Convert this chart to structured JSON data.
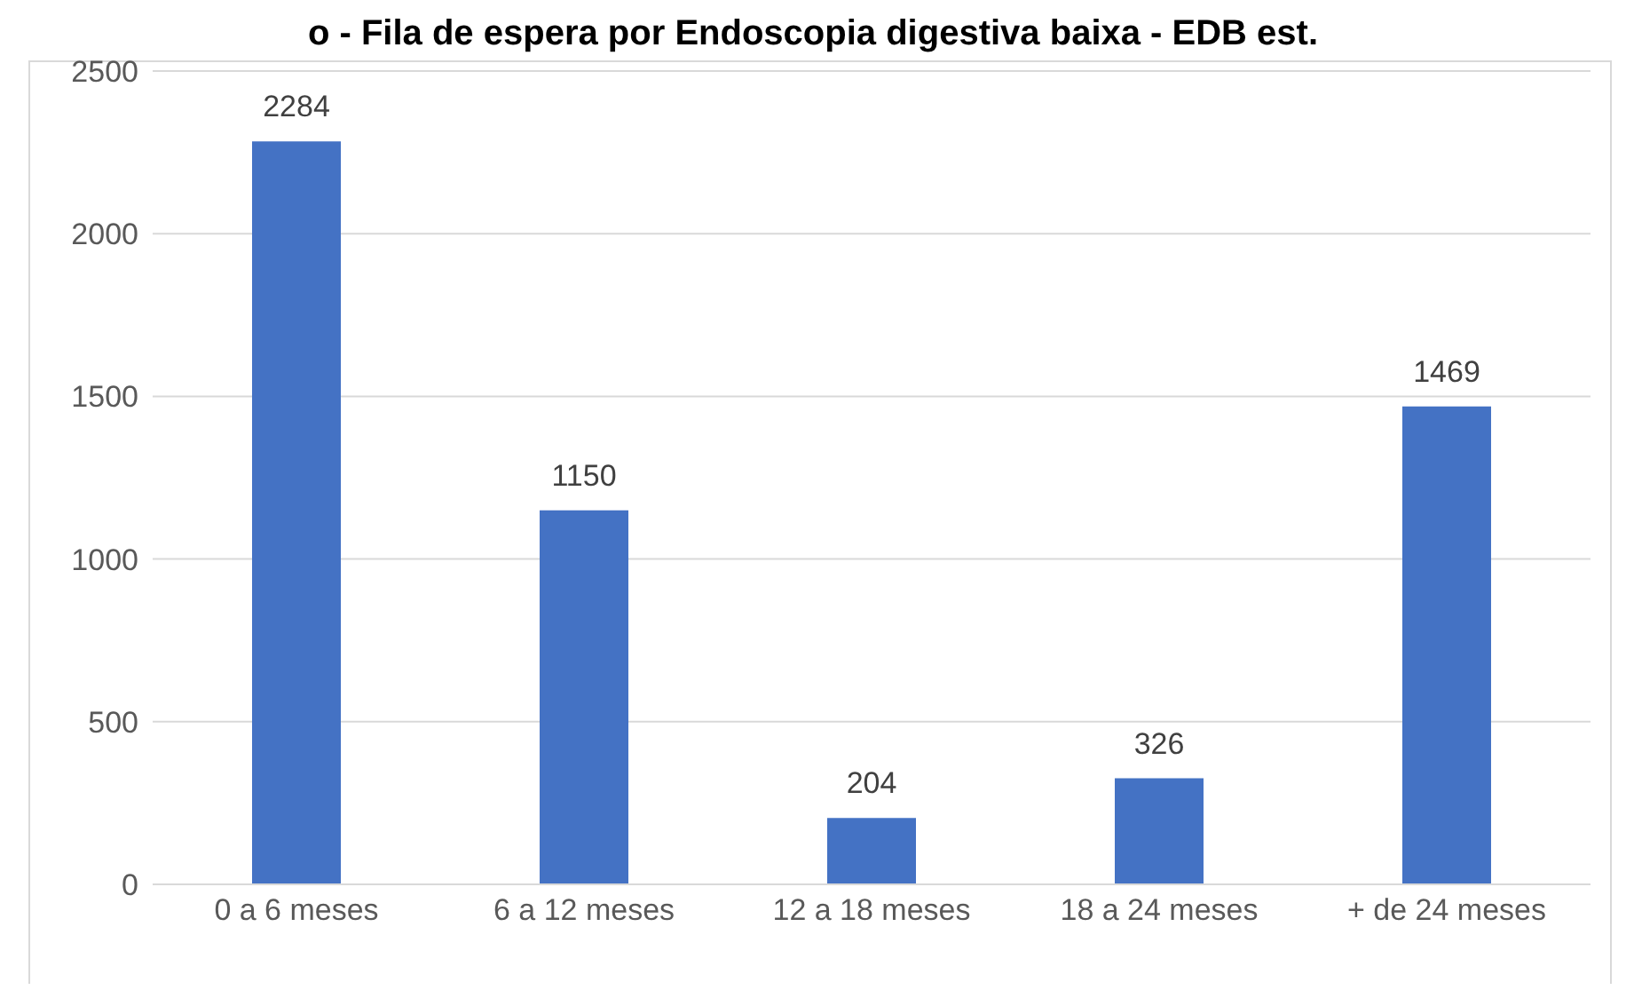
{
  "chart_data": {
    "type": "bar",
    "title": "o - Fila de espera por Endoscopia digestiva baixa - EDB est.",
    "categories": [
      "0 a 6 meses",
      "6 a 12 meses",
      "12 a 18 meses",
      "18 a 24 meses",
      "+ de 24 meses"
    ],
    "values": [
      2284,
      1150,
      204,
      326,
      1469
    ],
    "color": "#4472c4",
    "ylim": [
      0,
      2500
    ],
    "yticks": [
      0,
      500,
      1000,
      1500,
      2000,
      2500
    ],
    "grid": "y",
    "data_labels": true
  }
}
